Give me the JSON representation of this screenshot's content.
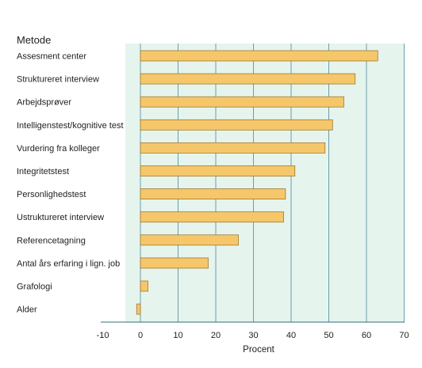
{
  "chart_data": {
    "type": "bar",
    "orientation": "horizontal",
    "category_header": "Metode",
    "categories": [
      "Assesment center",
      "Struktureret interview",
      "Arbejdsprøver",
      "Intelligenstest/kognitive test",
      "Vurdering fra kolleger",
      "Integritetstest",
      "Personlighedstest",
      "Ustruktureret interview",
      "Referencetagning",
      "Antal års erfaring i lign. job",
      "Grafologi",
      "Alder"
    ],
    "values": [
      63,
      57,
      54,
      51,
      49,
      41,
      38.5,
      38,
      26,
      18,
      2,
      -1
    ],
    "xlabel": "Procent",
    "ylabel": "",
    "xlim": [
      -10,
      70
    ],
    "xticks": [
      -10,
      0,
      10,
      20,
      30,
      40,
      50,
      60,
      70
    ],
    "grid": true,
    "colors": {
      "bar_fill": "#f5c76a",
      "bar_stroke": "#a07a2e",
      "plot_background": "#e6f4ee",
      "gridline": "#4a8a9a",
      "axis": "#2f6f82"
    }
  }
}
